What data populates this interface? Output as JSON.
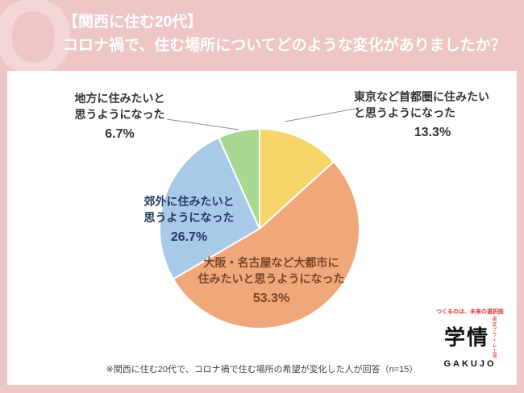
{
  "header": {
    "q_watermark": "Q",
    "title_line1": "【関西に住む20代】",
    "title_line2": "コロナ禍で、住む場所についてどのような変化がありましたか？"
  },
  "chart_data": {
    "type": "pie",
    "title": "【関西に住む20代】コロナ禍で、住む場所についてどのような変化がありましたか？",
    "unit": "%",
    "start_angle_deg": 0,
    "direction": "clockwise",
    "n": 15,
    "slices": [
      {
        "label": "東京など首都圏に住みたいと思うようになった",
        "value": 13.3,
        "color": "#f8d569"
      },
      {
        "label": "大阪・名古屋など大都市に住みたいと思うようになった",
        "value": 53.3,
        "color": "#f0a87a"
      },
      {
        "label": "郊外に住みたいと思うようになった",
        "value": 26.7,
        "color": "#a9c9e8"
      },
      {
        "label": "地方に住みたいと思うようになった",
        "value": 6.7,
        "color": "#a8d88f"
      }
    ]
  },
  "labels": {
    "tokyo": {
      "line1": "東京など首都圏に住みたい",
      "line2": "と思うようになった",
      "pct": "13.3%"
    },
    "osaka": {
      "line1": "大阪・名古屋など大都市に",
      "line2": "住みたいと思うようになった",
      "pct": "53.3%"
    },
    "suburb": {
      "line1": "郊外に住みたいと",
      "line2": "思うようになった",
      "pct": "26.7%"
    },
    "rural": {
      "line1": "地方に住みたいと",
      "line2": "思うようになった",
      "pct": "6.7%"
    }
  },
  "footnote": "※関西に住む20代で、コロナ禍で住む場所の希望が変化した人が回答（n=15）",
  "logo": {
    "tagline": "つくるのは、未来の選択肢",
    "name": "学情",
    "name_en": "GAKUJO",
    "listing": "東証プライム上場"
  },
  "colors": {
    "background_pink": "#efc6c6",
    "watermark_pink": "#f5d6d6",
    "header_text": "#ffffff",
    "panel": "#ffffff",
    "slice_yellow": "#f8d569",
    "slice_orange": "#f0a87a",
    "slice_blue": "#a9c9e8",
    "slice_green": "#a8d88f",
    "label_navy": "#1e3a5f",
    "label_brown": "#7a4528",
    "leader_line": "#8c8c8c",
    "logo_red": "#e03434"
  }
}
